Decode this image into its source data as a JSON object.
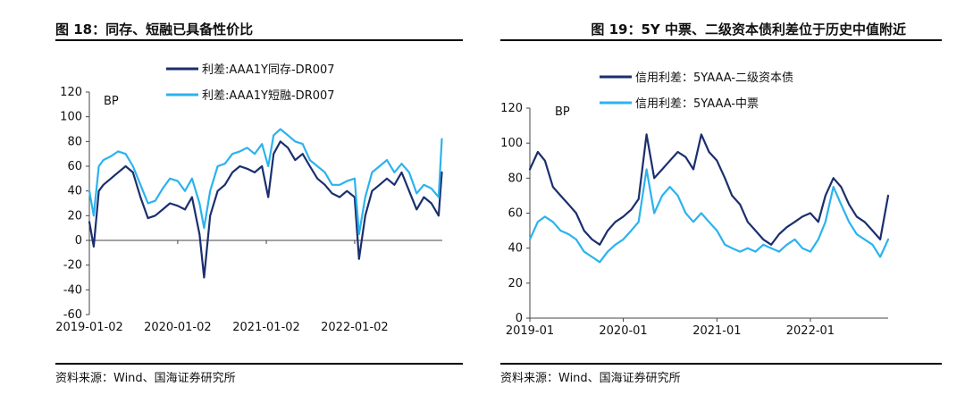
{
  "left": {
    "title": "图 18：同存、短融已具备性价比",
    "source": "资料来源：Wind、国海证券研究所",
    "colors": {
      "dark": "#1B2F6E",
      "light": "#2BB3EE"
    }
  },
  "right": {
    "title": "图 19：5Y 中票、二级资本债利差位于历史中值附近",
    "source": "资料来源：Wind、国海证券研究所",
    "colors": {
      "dark": "#1B2F6E",
      "light": "#2BB3EE"
    }
  },
  "chart_data": [
    {
      "type": "line",
      "title": "图 18：同存、短融已具备性价比",
      "unit_label": "BP",
      "ylim": [
        -60,
        120
      ],
      "yticks": [
        -60,
        -40,
        -20,
        0,
        20,
        40,
        60,
        80,
        100,
        120
      ],
      "xlim": [
        "2019-01-02",
        "2022-12-30"
      ],
      "xticks": [
        "2019-01-02",
        "2020-01-02",
        "2021-01-02",
        "2022-01-02"
      ],
      "legend_position": "top-center",
      "series": [
        {
          "name": "利差:AAA1Y同存-DR007",
          "color": "#1B2F6E",
          "x": [
            "2019-01-02",
            "2019-01-20",
            "2019-02-10",
            "2019-03-01",
            "2019-04-01",
            "2019-05-01",
            "2019-06-01",
            "2019-07-01",
            "2019-08-01",
            "2019-09-01",
            "2019-10-01",
            "2019-11-01",
            "2019-12-01",
            "2020-01-02",
            "2020-02-01",
            "2020-03-01",
            "2020-04-01",
            "2020-04-20",
            "2020-05-15",
            "2020-06-15",
            "2020-07-15",
            "2020-08-15",
            "2020-09-15",
            "2020-10-15",
            "2020-11-15",
            "2020-12-15",
            "2021-01-10",
            "2021-02-01",
            "2021-03-01",
            "2021-04-01",
            "2021-05-01",
            "2021-06-01",
            "2021-07-01",
            "2021-08-01",
            "2021-09-01",
            "2021-10-01",
            "2021-11-01",
            "2021-12-01",
            "2022-01-02",
            "2022-01-20",
            "2022-02-15",
            "2022-03-15",
            "2022-04-15",
            "2022-05-15",
            "2022-06-15",
            "2022-07-15",
            "2022-08-15",
            "2022-09-15",
            "2022-10-15",
            "2022-11-15",
            "2022-12-15",
            "2022-12-28"
          ],
          "values": [
            15,
            -5,
            40,
            45,
            50,
            55,
            60,
            55,
            35,
            18,
            20,
            25,
            30,
            28,
            25,
            35,
            5,
            -30,
            20,
            40,
            45,
            55,
            60,
            58,
            55,
            60,
            35,
            70,
            80,
            75,
            65,
            70,
            60,
            50,
            45,
            38,
            35,
            40,
            35,
            -15,
            20,
            40,
            45,
            50,
            45,
            55,
            40,
            25,
            35,
            30,
            20,
            55
          ]
        },
        {
          "name": "利差:AAA1Y短融-DR007",
          "color": "#2BB3EE",
          "x": [
            "2019-01-02",
            "2019-01-20",
            "2019-02-10",
            "2019-03-01",
            "2019-04-01",
            "2019-05-01",
            "2019-06-01",
            "2019-07-01",
            "2019-08-01",
            "2019-09-01",
            "2019-10-01",
            "2019-11-01",
            "2019-12-01",
            "2020-01-02",
            "2020-02-01",
            "2020-03-01",
            "2020-04-01",
            "2020-04-20",
            "2020-05-15",
            "2020-06-15",
            "2020-07-15",
            "2020-08-15",
            "2020-09-15",
            "2020-10-15",
            "2020-11-15",
            "2020-12-15",
            "2021-01-10",
            "2021-02-01",
            "2021-03-01",
            "2021-04-01",
            "2021-05-01",
            "2021-06-01",
            "2021-07-01",
            "2021-08-01",
            "2021-09-01",
            "2021-10-01",
            "2021-11-01",
            "2021-12-01",
            "2022-01-02",
            "2022-01-20",
            "2022-02-15",
            "2022-03-15",
            "2022-04-15",
            "2022-05-15",
            "2022-06-15",
            "2022-07-15",
            "2022-08-15",
            "2022-09-15",
            "2022-10-15",
            "2022-11-15",
            "2022-12-15",
            "2022-12-28"
          ],
          "values": [
            40,
            20,
            60,
            65,
            68,
            72,
            70,
            60,
            45,
            30,
            32,
            42,
            50,
            48,
            40,
            50,
            30,
            10,
            40,
            60,
            62,
            70,
            72,
            75,
            70,
            78,
            60,
            85,
            90,
            85,
            80,
            78,
            65,
            60,
            55,
            45,
            45,
            48,
            50,
            5,
            35,
            55,
            60,
            65,
            55,
            62,
            55,
            38,
            45,
            42,
            35,
            82
          ]
        }
      ]
    },
    {
      "type": "line",
      "title": "图 19：5Y 中票、二级资本债利差位于历史中值附近",
      "unit_label": "BP",
      "ylim": [
        0,
        120
      ],
      "yticks": [
        0,
        20,
        40,
        60,
        80,
        100,
        120
      ],
      "xlim": [
        "2019-01",
        "2022-11"
      ],
      "xticks": [
        "2019-01",
        "2020-01",
        "2021-01",
        "2022-01"
      ],
      "legend_position": "top-center",
      "series": [
        {
          "name": "信用利差：5YAAA-二级资本债",
          "color": "#1B2F6E",
          "x": [
            "2019-01",
            "2019-02",
            "2019-03",
            "2019-04",
            "2019-05",
            "2019-06",
            "2019-07",
            "2019-08",
            "2019-09",
            "2019-10",
            "2019-11",
            "2019-12",
            "2020-01",
            "2020-02",
            "2020-03",
            "2020-04",
            "2020-05",
            "2020-06",
            "2020-07",
            "2020-08",
            "2020-09",
            "2020-10",
            "2020-11",
            "2020-12",
            "2021-01",
            "2021-02",
            "2021-03",
            "2021-04",
            "2021-05",
            "2021-06",
            "2021-07",
            "2021-08",
            "2021-09",
            "2021-10",
            "2021-11",
            "2021-12",
            "2022-01",
            "2022-02",
            "2022-03",
            "2022-04",
            "2022-05",
            "2022-06",
            "2022-07",
            "2022-08",
            "2022-09",
            "2022-10",
            "2022-11"
          ],
          "values": [
            85,
            95,
            90,
            75,
            70,
            65,
            60,
            50,
            45,
            42,
            50,
            55,
            58,
            62,
            68,
            105,
            80,
            85,
            90,
            95,
            92,
            85,
            105,
            95,
            90,
            80,
            70,
            65,
            55,
            50,
            45,
            42,
            48,
            52,
            55,
            58,
            60,
            55,
            70,
            80,
            75,
            65,
            58,
            55,
            50,
            45,
            70
          ]
        },
        {
          "name": "信用利差：5YAAA-中票",
          "color": "#2BB3EE",
          "x": [
            "2019-01",
            "2019-02",
            "2019-03",
            "2019-04",
            "2019-05",
            "2019-06",
            "2019-07",
            "2019-08",
            "2019-09",
            "2019-10",
            "2019-11",
            "2019-12",
            "2020-01",
            "2020-02",
            "2020-03",
            "2020-04",
            "2020-05",
            "2020-06",
            "2020-07",
            "2020-08",
            "2020-09",
            "2020-10",
            "2020-11",
            "2020-12",
            "2021-01",
            "2021-02",
            "2021-03",
            "2021-04",
            "2021-05",
            "2021-06",
            "2021-07",
            "2021-08",
            "2021-09",
            "2021-10",
            "2021-11",
            "2021-12",
            "2022-01",
            "2022-02",
            "2022-03",
            "2022-04",
            "2022-05",
            "2022-06",
            "2022-07",
            "2022-08",
            "2022-09",
            "2022-10",
            "2022-11"
          ],
          "values": [
            45,
            55,
            58,
            55,
            50,
            48,
            45,
            38,
            35,
            32,
            38,
            42,
            45,
            50,
            55,
            85,
            60,
            70,
            75,
            70,
            60,
            55,
            60,
            55,
            50,
            42,
            40,
            38,
            40,
            38,
            42,
            40,
            38,
            42,
            45,
            40,
            38,
            45,
            55,
            75,
            65,
            55,
            48,
            45,
            42,
            35,
            45
          ]
        }
      ]
    }
  ]
}
